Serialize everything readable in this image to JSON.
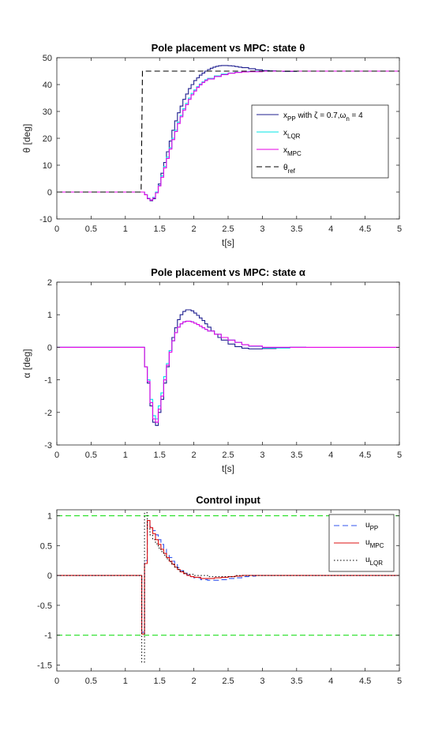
{
  "chart_data": [
    {
      "type": "line",
      "title": "Pole placement vs MPC: state θ",
      "xlabel": "t[s]",
      "ylabel": "θ [deg]",
      "xlim": [
        0,
        5
      ],
      "ylim": [
        -10,
        50
      ],
      "xticks": [
        "0",
        "0.5",
        "1",
        "1.5",
        "2",
        "2.5",
        "3",
        "3.5",
        "4",
        "4.5",
        "5"
      ],
      "yticks": [
        "-10",
        "0",
        "10",
        "20",
        "30",
        "40",
        "50"
      ],
      "legend_position": "right",
      "series": [
        {
          "name": "x_PP with ζ = 0.7, ω_n = 4",
          "label_main": "x",
          "label_sub": "PP",
          "label_rest": " with ζ = 0.7,ω",
          "label_sub2": "n",
          "label_rest2": " = 4",
          "color": "#1f1f8f",
          "style": "solid",
          "step": true,
          "x": [
            0,
            1.28,
            1.32,
            1.36,
            1.4,
            1.44,
            1.48,
            1.52,
            1.56,
            1.6,
            1.64,
            1.68,
            1.72,
            1.76,
            1.8,
            1.84,
            1.88,
            1.92,
            1.96,
            2.0,
            2.04,
            2.08,
            2.12,
            2.16,
            2.2,
            2.24,
            2.28,
            2.32,
            2.36,
            2.4,
            2.45,
            2.5,
            2.55,
            2.6,
            2.65,
            2.7,
            2.8,
            2.9,
            3.0,
            3.1,
            3.2,
            3.3,
            3.4,
            3.5,
            3.7,
            5.0
          ],
          "y": [
            0,
            -1,
            -2.5,
            -3.2,
            -2.5,
            0,
            3,
            7,
            11,
            15,
            19,
            23,
            26.5,
            29.5,
            32,
            34.5,
            36.5,
            38.5,
            40,
            41.5,
            42.5,
            43.5,
            44.3,
            45,
            45.6,
            46.1,
            46.5,
            46.8,
            47,
            47.1,
            47.1,
            47,
            46.9,
            46.7,
            46.5,
            46.3,
            45.9,
            45.5,
            45.2,
            45.1,
            45,
            44.9,
            44.9,
            45,
            45,
            45
          ]
        },
        {
          "name": "x_LQR",
          "label_main": "x",
          "label_sub": "LQR",
          "color": "#00e5e5",
          "style": "solid",
          "step": true,
          "x": [
            0,
            1.28,
            1.32,
            1.36,
            1.4,
            1.44,
            1.48,
            1.52,
            1.56,
            1.6,
            1.64,
            1.68,
            1.72,
            1.76,
            1.8,
            1.84,
            1.88,
            1.92,
            1.96,
            2.0,
            2.04,
            2.08,
            2.12,
            2.16,
            2.2,
            2.3,
            2.4,
            2.5,
            2.6,
            2.7,
            2.8,
            3.0,
            3.3,
            5.0
          ],
          "y": [
            0,
            -1,
            -2.3,
            -2.9,
            -2,
            0,
            2.5,
            6,
            9.5,
            13,
            16.5,
            20,
            23,
            26,
            28.5,
            31,
            33,
            35,
            36.7,
            38,
            39.2,
            40.2,
            41,
            41.8,
            42.3,
            43.2,
            43.9,
            44.3,
            44.6,
            44.8,
            44.9,
            45,
            45,
            45
          ]
        },
        {
          "name": "x_MPC",
          "label_main": "x",
          "label_sub": "MPC",
          "color": "#e600e6",
          "style": "solid",
          "step": true,
          "x": [
            0,
            1.28,
            1.32,
            1.36,
            1.4,
            1.44,
            1.48,
            1.52,
            1.56,
            1.6,
            1.64,
            1.68,
            1.72,
            1.76,
            1.8,
            1.84,
            1.88,
            1.92,
            1.96,
            2.0,
            2.04,
            2.08,
            2.12,
            2.16,
            2.2,
            2.3,
            2.4,
            2.5,
            2.6,
            2.7,
            2.8,
            3.0,
            3.3,
            5.0
          ],
          "y": [
            0,
            -1,
            -2.4,
            -3,
            -2.2,
            -0.3,
            2.3,
            5.5,
            9,
            12.5,
            16,
            19.5,
            22.5,
            25.5,
            28,
            30.5,
            32.5,
            34.5,
            36.2,
            37.6,
            38.9,
            39.9,
            40.8,
            41.5,
            42.1,
            43,
            43.7,
            44.2,
            44.5,
            44.7,
            44.8,
            45,
            45,
            45
          ]
        },
        {
          "name": "θ_ref",
          "label_main": "θ",
          "label_sub": "ref",
          "color": "#000000",
          "style": "dashed",
          "step": false,
          "x": [
            0,
            1.23,
            1.25,
            5.0
          ],
          "y": [
            0,
            0,
            45,
            45
          ]
        }
      ]
    },
    {
      "type": "line",
      "title": "Pole placement vs MPC: state α",
      "xlabel": "t[s]",
      "ylabel": "α [deg]",
      "xlim": [
        0,
        5
      ],
      "ylim": [
        -3,
        2
      ],
      "xticks": [
        "0",
        "0.5",
        "1",
        "1.5",
        "2",
        "2.5",
        "3",
        "3.5",
        "4",
        "4.5",
        "5"
      ],
      "yticks": [
        "-3",
        "-2",
        "-1",
        "0",
        "1",
        "2"
      ],
      "series": [
        {
          "name": "x_PP",
          "color": "#1f1f8f",
          "style": "solid",
          "step": true,
          "x": [
            0,
            1.28,
            1.32,
            1.36,
            1.4,
            1.44,
            1.48,
            1.52,
            1.56,
            1.6,
            1.64,
            1.68,
            1.72,
            1.76,
            1.8,
            1.84,
            1.88,
            1.92,
            1.96,
            2.0,
            2.04,
            2.08,
            2.12,
            2.16,
            2.2,
            2.25,
            2.3,
            2.35,
            2.4,
            2.5,
            2.6,
            2.7,
            2.8,
            2.9,
            3.0,
            3.2,
            3.4,
            3.64
          ],
          "y": [
            0,
            -0.6,
            -1.1,
            -1.8,
            -2.3,
            -2.4,
            -2.0,
            -1.6,
            -1.1,
            -0.6,
            -0.1,
            0.3,
            0.6,
            0.85,
            1.0,
            1.1,
            1.15,
            1.15,
            1.12,
            1.05,
            0.98,
            0.9,
            0.82,
            0.72,
            0.62,
            0.5,
            0.4,
            0.3,
            0.22,
            0.1,
            0.02,
            -0.03,
            -0.05,
            -0.05,
            -0.04,
            -0.02,
            0,
            0
          ]
        },
        {
          "name": "x_LQR",
          "color": "#00e5e5",
          "style": "solid",
          "step": true,
          "x": [
            0,
            1.28,
            1.32,
            1.36,
            1.4,
            1.44,
            1.48,
            1.52,
            1.56,
            1.6,
            1.64,
            1.68,
            1.72,
            1.76,
            1.8,
            1.84,
            1.88,
            1.92,
            1.96,
            2.0,
            2.04,
            2.08,
            2.12,
            2.16,
            2.2,
            2.3,
            2.4,
            2.5,
            2.6,
            2.7,
            2.8,
            3.0,
            3.2,
            3.4,
            3.64
          ],
          "y": [
            0,
            -0.6,
            -1.0,
            -1.6,
            -2.1,
            -2.2,
            -1.8,
            -1.4,
            -0.9,
            -0.5,
            -0.1,
            0.2,
            0.45,
            0.62,
            0.72,
            0.78,
            0.8,
            0.8,
            0.78,
            0.74,
            0.7,
            0.65,
            0.6,
            0.55,
            0.5,
            0.4,
            0.3,
            0.22,
            0.15,
            0.08,
            0.03,
            -0.02,
            -0.02,
            0,
            0
          ]
        },
        {
          "name": "x_MPC",
          "color": "#e600e6",
          "style": "solid",
          "step": true,
          "x": [
            0,
            1.28,
            1.32,
            1.36,
            1.4,
            1.44,
            1.48,
            1.52,
            1.56,
            1.6,
            1.64,
            1.68,
            1.72,
            1.76,
            1.8,
            1.84,
            1.88,
            1.92,
            1.96,
            2.0,
            2.04,
            2.08,
            2.12,
            2.16,
            2.2,
            2.3,
            2.4,
            2.5,
            2.6,
            2.7,
            2.8,
            3.0,
            3.2,
            3.4,
            3.64,
            5.0
          ],
          "y": [
            0,
            -0.6,
            -1.05,
            -1.7,
            -2.2,
            -2.3,
            -1.9,
            -1.5,
            -1.0,
            -0.55,
            -0.15,
            0.2,
            0.45,
            0.62,
            0.72,
            0.78,
            0.8,
            0.8,
            0.78,
            0.74,
            0.7,
            0.65,
            0.6,
            0.55,
            0.5,
            0.4,
            0.3,
            0.22,
            0.15,
            0.08,
            0.04,
            0,
            0,
            0,
            0,
            0
          ]
        }
      ]
    },
    {
      "type": "line",
      "title": "Control input",
      "xlabel": "",
      "ylabel": "",
      "xlim": [
        0,
        5
      ],
      "ylim": [
        -1.6,
        1.1
      ],
      "xticks": [
        "0",
        "0.5",
        "1",
        "1.5",
        "2",
        "2.5",
        "3",
        "3.5",
        "4",
        "4.5",
        "5"
      ],
      "yticks": [
        "-1.5",
        "-1",
        "-0.5",
        "0",
        "0.5",
        "1"
      ],
      "ytick_values": [
        -1.5,
        -1,
        -0.5,
        0,
        0.5,
        1
      ],
      "legend_position": "top-right",
      "limit_lines": [
        1,
        -1
      ],
      "limit_color": "#22e022",
      "series": [
        {
          "name": "u_PP",
          "label_main": "u",
          "label_sub": "PP",
          "color": "#3355ee",
          "style": "dashed",
          "step": true,
          "x": [
            0,
            1.24,
            1.28,
            1.32,
            1.36,
            1.4,
            1.44,
            1.48,
            1.52,
            1.56,
            1.6,
            1.64,
            1.68,
            1.72,
            1.76,
            1.8,
            1.85,
            1.9,
            1.95,
            2.0,
            2.1,
            2.2,
            2.3,
            2.4,
            2.5,
            2.6,
            2.7,
            2.8,
            2.9,
            5.0
          ],
          "y": [
            0,
            -0.95,
            0.25,
            0.9,
            0.82,
            0.75,
            0.68,
            0.6,
            0.52,
            0.44,
            0.36,
            0.3,
            0.24,
            0.18,
            0.13,
            0.08,
            0.04,
            0.01,
            -0.02,
            -0.04,
            -0.07,
            -0.08,
            -0.08,
            -0.07,
            -0.05,
            -0.04,
            -0.02,
            -0.01,
            0,
            0
          ]
        },
        {
          "name": "u_MPC",
          "label_main": "u",
          "label_sub": "MPC",
          "color": "#dd1111",
          "style": "solid",
          "step": true,
          "x": [
            0,
            1.24,
            1.28,
            1.32,
            1.36,
            1.4,
            1.44,
            1.48,
            1.52,
            1.56,
            1.6,
            1.64,
            1.68,
            1.72,
            1.76,
            1.8,
            1.85,
            1.9,
            1.95,
            2.0,
            2.1,
            2.2,
            2.3,
            2.4,
            2.5,
            2.6,
            2.7,
            5.0
          ],
          "y": [
            0,
            -0.98,
            0.2,
            0.92,
            0.8,
            0.7,
            0.6,
            0.52,
            0.44,
            0.37,
            0.3,
            0.24,
            0.19,
            0.14,
            0.1,
            0.06,
            0.03,
            0,
            -0.02,
            -0.03,
            -0.05,
            -0.05,
            -0.04,
            -0.03,
            -0.02,
            -0.01,
            0,
            0
          ]
        },
        {
          "name": "u_LQR",
          "label_main": "u",
          "label_sub": "LQR",
          "color": "#000000",
          "style": "dotted",
          "step": true,
          "x": [
            0,
            1.24,
            1.28,
            1.32,
            1.36,
            1.4,
            1.44,
            1.48,
            1.52,
            1.56,
            1.6,
            1.64,
            1.68,
            1.72,
            1.76,
            1.8,
            1.85,
            1.9,
            2.0,
            2.2,
            2.4,
            2.6,
            5.0
          ],
          "y": [
            0,
            -1.45,
            1.05,
            0.78,
            0.68,
            0.6,
            0.53,
            0.46,
            0.4,
            0.34,
            0.28,
            0.23,
            0.18,
            0.14,
            0.1,
            0.07,
            0.04,
            0.02,
            0,
            -0.02,
            -0.02,
            0,
            0
          ]
        }
      ]
    }
  ]
}
